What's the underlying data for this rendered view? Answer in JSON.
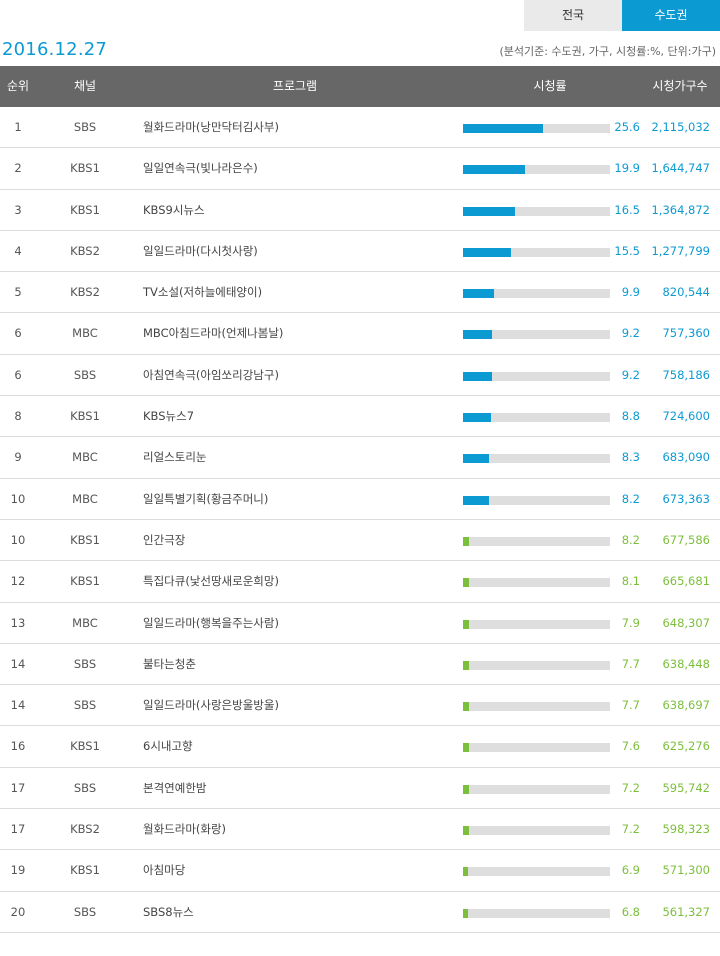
{
  "tabs": {
    "national": "전국",
    "metro": "수도권"
  },
  "date": "2016.12.27",
  "note": "(분석기준: 수도권, 가구, 시청률:%, 단위:가구)",
  "headers": {
    "rank": "순위",
    "channel": "채널",
    "program": "프로그램",
    "rating": "시청률",
    "households": "시청가구수"
  },
  "colors": {
    "accent_blue": "#0c9ad3",
    "accent_green": "#7cbf3c",
    "header_bg": "#676767"
  },
  "rating_scale_max": 47,
  "rows": [
    {
      "rank": "1",
      "channel": "SBS",
      "program": "월화드라마(낭만닥터김사부)",
      "rating": "25.6",
      "households": "2,115,032",
      "color": "blue"
    },
    {
      "rank": "2",
      "channel": "KBS1",
      "program": "일일연속극(빛나라은수)",
      "rating": "19.9",
      "households": "1,644,747",
      "color": "blue"
    },
    {
      "rank": "3",
      "channel": "KBS1",
      "program": "KBS9시뉴스",
      "rating": "16.5",
      "households": "1,364,872",
      "color": "blue"
    },
    {
      "rank": "4",
      "channel": "KBS2",
      "program": "일일드라마(다시첫사랑)",
      "rating": "15.5",
      "households": "1,277,799",
      "color": "blue"
    },
    {
      "rank": "5",
      "channel": "KBS2",
      "program": "TV소설(저하늘에태양이)",
      "rating": "9.9",
      "households": "820,544",
      "color": "blue"
    },
    {
      "rank": "6",
      "channel": "MBC",
      "program": "MBC아침드라마(언제나봄날)",
      "rating": "9.2",
      "households": "757,360",
      "color": "blue"
    },
    {
      "rank": "6",
      "channel": "SBS",
      "program": "아침연속극(아임쏘리강남구)",
      "rating": "9.2",
      "households": "758,186",
      "color": "blue"
    },
    {
      "rank": "8",
      "channel": "KBS1",
      "program": "KBS뉴스7",
      "rating": "8.8",
      "households": "724,600",
      "color": "blue"
    },
    {
      "rank": "9",
      "channel": "MBC",
      "program": "리얼스토리눈",
      "rating": "8.3",
      "households": "683,090",
      "color": "blue"
    },
    {
      "rank": "10",
      "channel": "MBC",
      "program": "일일특별기획(황금주머니)",
      "rating": "8.2",
      "households": "673,363",
      "color": "blue"
    },
    {
      "rank": "10",
      "channel": "KBS1",
      "program": "인간극장",
      "rating": "8.2",
      "households": "677,586",
      "color": "green"
    },
    {
      "rank": "12",
      "channel": "KBS1",
      "program": "특집다큐(낯선땅새로운희망)",
      "rating": "8.1",
      "households": "665,681",
      "color": "green"
    },
    {
      "rank": "13",
      "channel": "MBC",
      "program": "일일드라마(행복을주는사람)",
      "rating": "7.9",
      "households": "648,307",
      "color": "green"
    },
    {
      "rank": "14",
      "channel": "SBS",
      "program": "불타는청춘",
      "rating": "7.7",
      "households": "638,448",
      "color": "green"
    },
    {
      "rank": "14",
      "channel": "SBS",
      "program": "일일드라마(사랑은방울방울)",
      "rating": "7.7",
      "households": "638,697",
      "color": "green"
    },
    {
      "rank": "16",
      "channel": "KBS1",
      "program": "6시내고향",
      "rating": "7.6",
      "households": "625,276",
      "color": "green"
    },
    {
      "rank": "17",
      "channel": "SBS",
      "program": "본격연예한밤",
      "rating": "7.2",
      "households": "595,742",
      "color": "green"
    },
    {
      "rank": "17",
      "channel": "KBS2",
      "program": "월화드라마(화랑)",
      "rating": "7.2",
      "households": "598,323",
      "color": "green"
    },
    {
      "rank": "19",
      "channel": "KBS1",
      "program": "아침마당",
      "rating": "6.9",
      "households": "571,300",
      "color": "green"
    },
    {
      "rank": "20",
      "channel": "SBS",
      "program": "SBS8뉴스",
      "rating": "6.8",
      "households": "561,327",
      "color": "green"
    }
  ]
}
